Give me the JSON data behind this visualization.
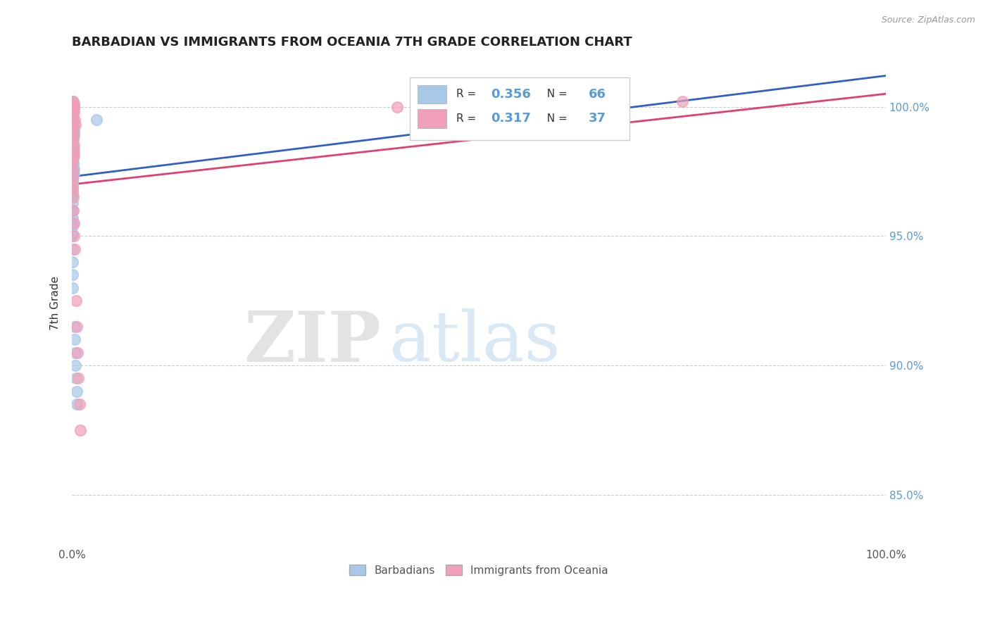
{
  "title": "BARBADIAN VS IMMIGRANTS FROM OCEANIA 7TH GRADE CORRELATION CHART",
  "source": "Source: ZipAtlas.com",
  "ylabel": "7th Grade",
  "r_blue": 0.356,
  "n_blue": 66,
  "r_pink": 0.317,
  "n_pink": 37,
  "blue_color": "#a8c8e8",
  "pink_color": "#f0a0b8",
  "blue_line_color": "#3060c0",
  "pink_line_color": "#e04070",
  "watermark_zip": "ZIP",
  "watermark_atlas": "atlas",
  "legend_labels": [
    "Barbadians",
    "Immigrants from Oceania"
  ],
  "ytick_labels": [
    "85.0%",
    "90.0%",
    "95.0%",
    "100.0%"
  ],
  "ytick_values": [
    85.0,
    90.0,
    95.0,
    100.0
  ],
  "xlim": [
    0,
    100
  ],
  "ylim": [
    83.0,
    101.8
  ],
  "blue_x": [
    0.05,
    0.08,
    0.1,
    0.12,
    0.13,
    0.15,
    0.18,
    0.2,
    0.22,
    0.25,
    0.05,
    0.07,
    0.09,
    0.11,
    0.14,
    0.16,
    0.19,
    0.21,
    0.23,
    0.26,
    0.03,
    0.04,
    0.06,
    0.08,
    0.1,
    0.12,
    0.15,
    0.17,
    0.2,
    0.22,
    0.02,
    0.03,
    0.04,
    0.05,
    0.06,
    0.07,
    0.08,
    0.09,
    0.1,
    0.11,
    0.01,
    0.02,
    0.03,
    0.04,
    0.05,
    0.06,
    0.07,
    0.08,
    0.09,
    0.1,
    0.01,
    0.01,
    0.02,
    0.02,
    0.03,
    0.03,
    0.04,
    0.04,
    3.0,
    0.3,
    0.35,
    0.4,
    0.45,
    0.5,
    0.55,
    0.6
  ],
  "blue_y": [
    100.2,
    100.1,
    100.0,
    100.0,
    100.1,
    100.2,
    100.0,
    100.1,
    100.0,
    100.0,
    99.8,
    99.7,
    99.6,
    99.5,
    99.4,
    99.3,
    99.2,
    99.1,
    99.0,
    98.9,
    99.0,
    98.8,
    98.7,
    98.5,
    98.4,
    98.2,
    98.0,
    97.8,
    97.6,
    97.4,
    98.5,
    98.3,
    98.1,
    97.9,
    97.7,
    97.5,
    97.3,
    97.1,
    96.9,
    96.7,
    97.8,
    97.5,
    97.2,
    96.9,
    96.6,
    96.3,
    96.0,
    95.7,
    95.4,
    95.1,
    96.5,
    96.0,
    95.5,
    95.0,
    94.5,
    94.0,
    93.5,
    93.0,
    99.5,
    91.5,
    91.0,
    90.5,
    90.0,
    89.5,
    89.0,
    88.5
  ],
  "pink_x": [
    0.05,
    0.08,
    0.12,
    0.15,
    0.18,
    0.22,
    0.25,
    0.28,
    0.04,
    0.07,
    0.11,
    0.14,
    0.17,
    0.21,
    0.24,
    0.27,
    0.03,
    0.06,
    0.1,
    0.13,
    0.16,
    0.2,
    0.23,
    0.02,
    0.05,
    0.09,
    0.35,
    0.4,
    40.0,
    75.0,
    0.3,
    0.5,
    0.6,
    0.7,
    0.8,
    0.9,
    1.0
  ],
  "pink_y": [
    100.2,
    100.1,
    100.0,
    100.0,
    100.0,
    100.1,
    99.9,
    99.8,
    99.5,
    99.3,
    99.1,
    98.9,
    98.7,
    98.5,
    98.3,
    98.1,
    98.0,
    97.5,
    97.0,
    96.5,
    96.0,
    95.5,
    95.0,
    97.8,
    97.3,
    96.8,
    99.5,
    99.3,
    100.0,
    100.2,
    94.5,
    92.5,
    91.5,
    90.5,
    89.5,
    88.5,
    87.5
  ]
}
